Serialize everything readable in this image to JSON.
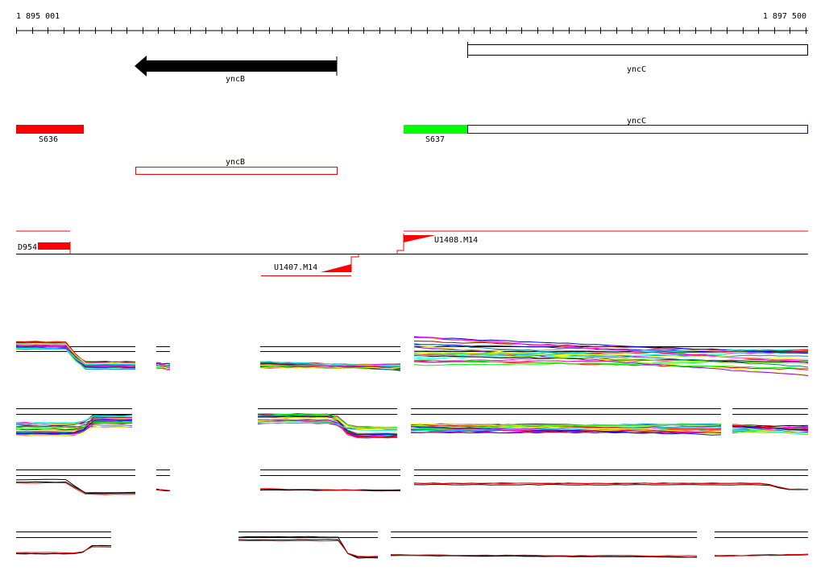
{
  "ruler": {
    "start_label": "1 895 001",
    "end_label": "1 897 500"
  },
  "genes": {
    "yncB": "yncB",
    "yncC": "yncC"
  },
  "transcripts": {
    "yncC": "yncC",
    "S636": "S636",
    "S637": "S637",
    "yncB": "yncB"
  },
  "features": {
    "D954": "D954",
    "U1407": "U1407.M14",
    "U1408": "U1408.M14"
  },
  "colors": {
    "gene": "#000000",
    "segment_red": "#ff0000",
    "segment_green": "#00ff00",
    "transcript_outline_blue": "#0000ff",
    "transcript_outline_red": "#ff0000",
    "track_black": "#000000",
    "track_red": "#ff0000"
  },
  "tracks": [
    {
      "name": "track-1",
      "style": "multicolor"
    },
    {
      "name": "track-2",
      "style": "multicolor"
    },
    {
      "name": "track-3",
      "style": "black-red"
    },
    {
      "name": "track-4",
      "style": "black-red"
    }
  ]
}
